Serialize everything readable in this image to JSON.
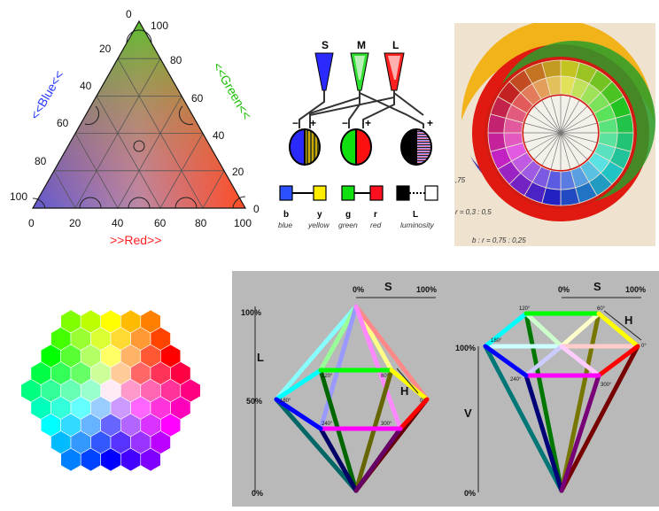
{
  "triangle": {
    "axis_labels": {
      "blue": "<<Blue<<",
      "green": "<<Green<<",
      "red": ">>Red>>"
    },
    "left_ticks": [
      "0",
      "20",
      "40",
      "60",
      "80",
      "100"
    ],
    "right_ticks": [
      "100",
      "80",
      "60",
      "40",
      "20",
      "0"
    ],
    "bottom_ticks": [
      "0",
      "20",
      "40",
      "60",
      "80",
      "100"
    ],
    "colors": {
      "blue": "#2a3cff",
      "green": "#18c000",
      "red": "#ff1010"
    }
  },
  "opponent": {
    "cones": [
      "S",
      "M",
      "L"
    ],
    "signs": {
      "minus": "−",
      "plus": "+"
    },
    "channels": [
      {
        "letters": [
          "b",
          "y"
        ],
        "names": [
          "blue",
          "yellow"
        ]
      },
      {
        "letters": [
          "g",
          "r"
        ],
        "names": [
          "green",
          "red"
        ]
      },
      {
        "letters": [
          "L"
        ],
        "names": [
          "luminosity"
        ]
      }
    ]
  },
  "wheel": {
    "notes": [
      ",75",
      "r = 0,3 : 0,5",
      "b : r = 0,75 : 0,25"
    ]
  },
  "hsl": {
    "s_label": "S",
    "h_label": "H",
    "l_label": "L",
    "v_label": "V",
    "pct_0": "0%",
    "pct_100": "100%",
    "pct_50": "50%",
    "hue_labels": {
      "h0": "0°",
      "h60": "60°",
      "h120": "120°",
      "h180": "180°",
      "h240": "240°",
      "h300": "300°"
    }
  }
}
